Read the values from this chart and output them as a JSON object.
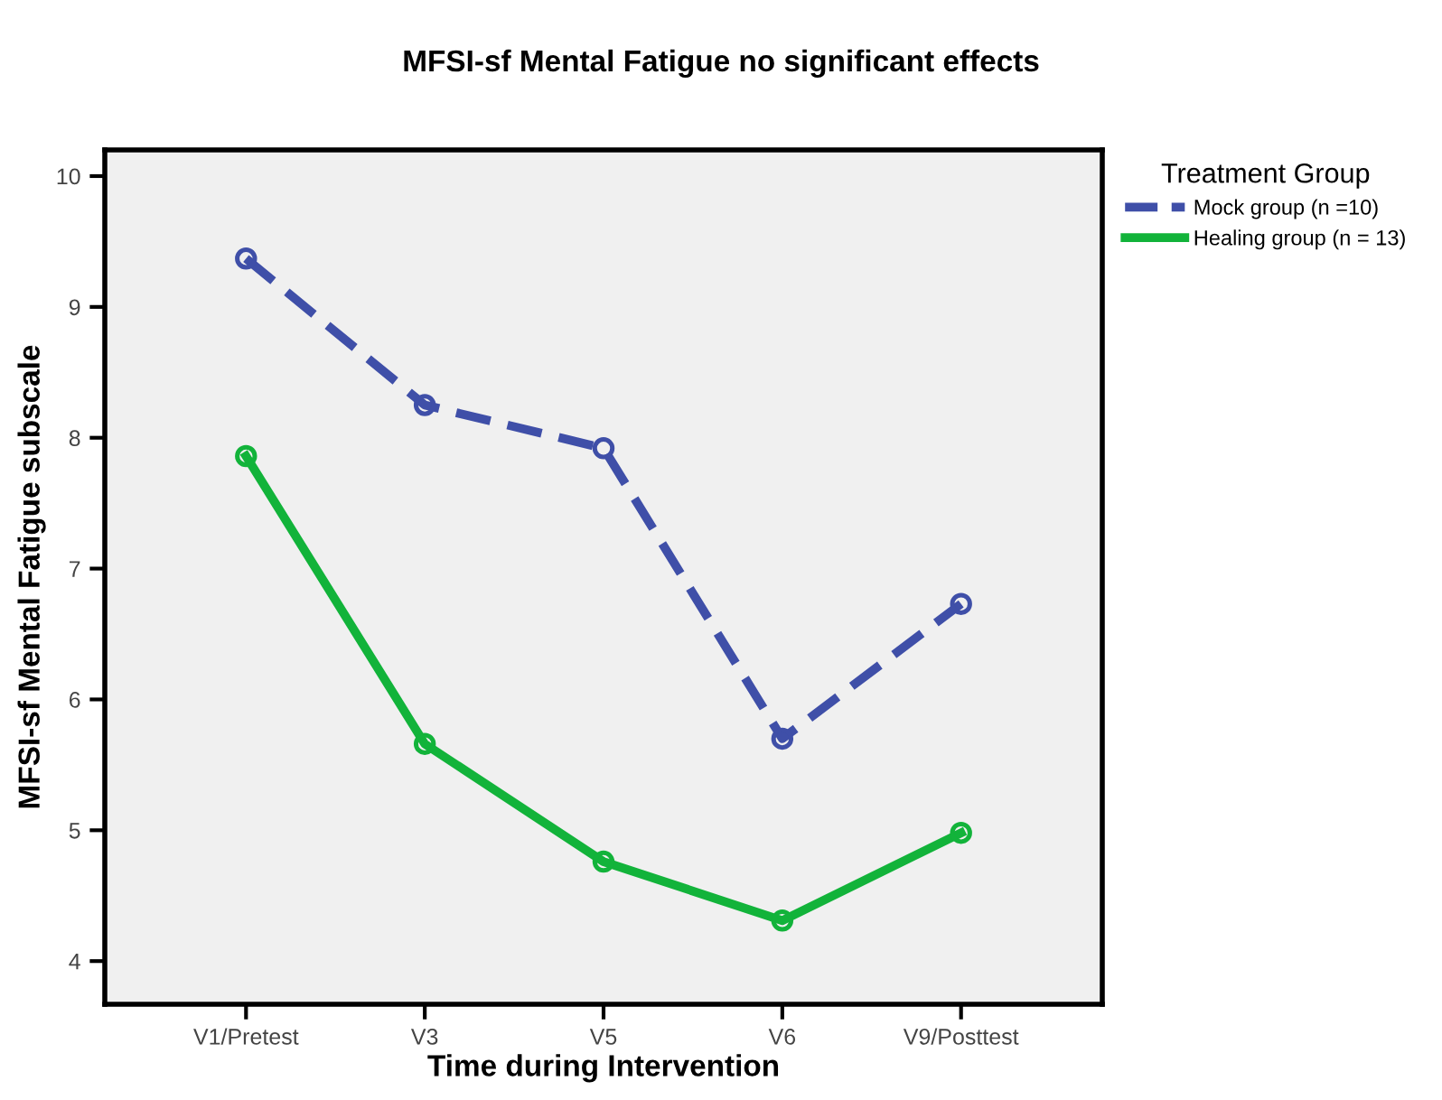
{
  "chart_data": {
    "type": "line",
    "title": "MFSI-sf Mental Fatigue no significant effects",
    "xlabel": "Time during Intervention",
    "ylabel": "MFSI-sf Mental Fatigue subscale",
    "legend_title": "Treatment Group",
    "legend": "top right",
    "marker": "circle",
    "grid": false,
    "categories": [
      "V1/Pretest",
      "V3",
      "V5",
      "V6",
      "V9/Posttest"
    ],
    "ylim": [
      3.67,
      10.2
    ],
    "yticks": [
      4,
      5,
      6,
      7,
      8,
      9,
      10
    ],
    "series": [
      {
        "name": "Mock group (n =10)",
        "color": "#3f4fa8",
        "line_style": "dashed",
        "values": [
          9.37,
          8.25,
          7.92,
          5.7,
          6.73
        ]
      },
      {
        "name": "Healing group (n = 13)",
        "color": "#12b33a",
        "line_style": "solid",
        "values": [
          7.86,
          5.66,
          4.76,
          4.31,
          4.98
        ]
      }
    ]
  }
}
